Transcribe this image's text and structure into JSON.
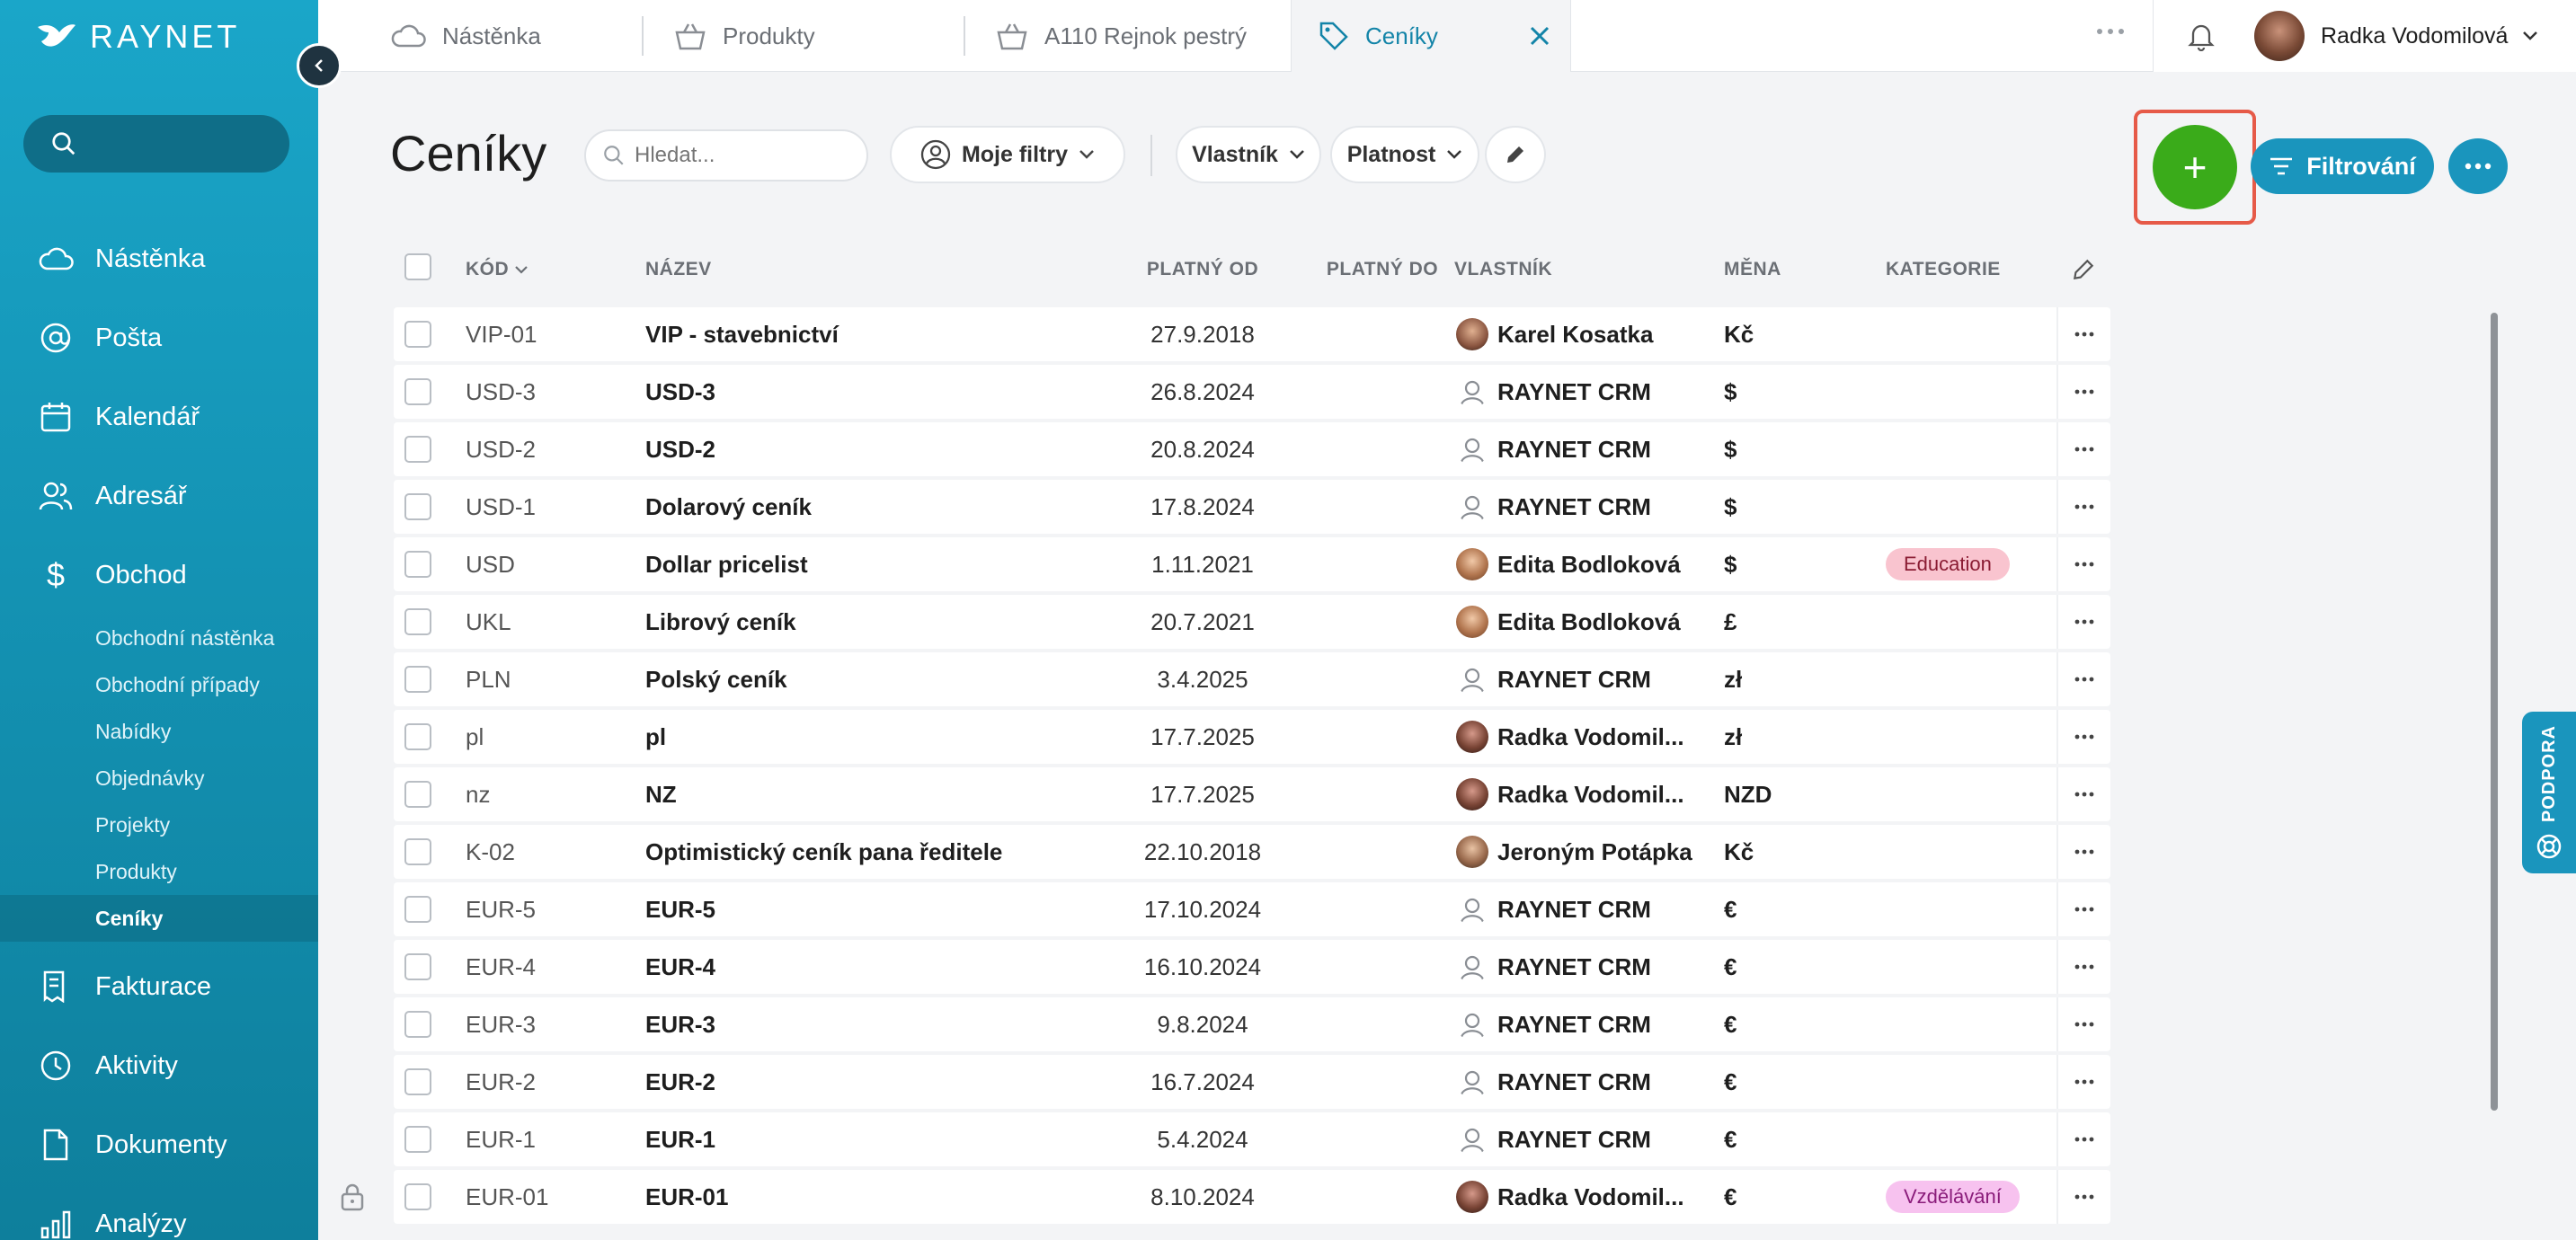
{
  "app": {
    "logo_text": "RAYNET"
  },
  "colors": {
    "sidebar": "#1493b4",
    "accent": "#1a95bd",
    "add": "#3aab1a",
    "highlight": "#e65a48"
  },
  "sidebar": {
    "search_placeholder": "",
    "items": [
      {
        "label": "Nástěnka",
        "icon": "cloud-icon"
      },
      {
        "label": "Pošta",
        "icon": "at-icon"
      },
      {
        "label": "Kalendář",
        "icon": "calendar-icon"
      },
      {
        "label": "Adresář",
        "icon": "people-icon"
      },
      {
        "label": "Obchod",
        "icon": "dollar-icon"
      }
    ],
    "subitems": [
      "Obchodní nástěnka",
      "Obchodní případy",
      "Nabídky",
      "Objednávky",
      "Projekty",
      "Produkty",
      "Ceníky"
    ],
    "items2": [
      {
        "label": "Fakturace",
        "icon": "invoice-icon"
      },
      {
        "label": "Aktivity",
        "icon": "clock-icon"
      },
      {
        "label": "Dokumenty",
        "icon": "document-icon"
      },
      {
        "label": "Analýzy",
        "icon": "chart-icon"
      }
    ]
  },
  "tabs": [
    {
      "label": "Nástěnka",
      "icon": "cloud-icon"
    },
    {
      "label": "Produkty",
      "icon": "basket-icon"
    },
    {
      "label": "A110 Rejnok pestrý",
      "icon": "basket-icon"
    },
    {
      "label": "Ceníky",
      "icon": "tag-icon"
    }
  ],
  "user": {
    "name": "Radka Vodomilová"
  },
  "toolbar": {
    "title": "Ceníky",
    "search_placeholder": "Hledat...",
    "my_filters": "Moje filtry",
    "owner_filter": "Vlastník",
    "validity_filter": "Platnost",
    "add_label": "+",
    "filter_label": "Filtrování"
  },
  "table": {
    "headers": {
      "code": "KÓD",
      "name": "NÁZEV",
      "from": "PLATNÝ OD",
      "to": "PLATNÝ DO",
      "owner": "VLASTNÍK",
      "currency": "MĚNA",
      "category": "KATEGORIE"
    },
    "rows": [
      {
        "code": "VIP-01",
        "name": "VIP - stavebnictví",
        "from": "27.9.2018",
        "owner": "Karel Kosatka",
        "owner_type": "m",
        "currency": "Kč",
        "category": ""
      },
      {
        "code": "USD-3",
        "name": "USD-3",
        "from": "26.8.2024",
        "owner": "RAYNET CRM",
        "owner_type": "sys",
        "currency": "$",
        "category": ""
      },
      {
        "code": "USD-2",
        "name": "USD-2",
        "from": "20.8.2024",
        "owner": "RAYNET CRM",
        "owner_type": "sys",
        "currency": "$",
        "category": ""
      },
      {
        "code": "USD-1",
        "name": "Dolarový ceník",
        "from": "17.8.2024",
        "owner": "RAYNET CRM",
        "owner_type": "sys",
        "currency": "$",
        "category": ""
      },
      {
        "code": "USD",
        "name": "Dollar pricelist",
        "from": "1.11.2021",
        "owner": "Edita Bodloková",
        "owner_type": "f",
        "currency": "$",
        "category": "Education",
        "category_bg": "#f9c4cf",
        "category_fg": "#8a1c33"
      },
      {
        "code": "UKL",
        "name": "Librový ceník",
        "from": "20.7.2021",
        "owner": "Edita Bodloková",
        "owner_type": "f",
        "currency": "£",
        "category": ""
      },
      {
        "code": "PLN",
        "name": "Polský ceník",
        "from": "3.4.2025",
        "owner": "RAYNET CRM",
        "owner_type": "sys",
        "currency": "zł",
        "category": ""
      },
      {
        "code": "pl",
        "name": "pl",
        "from": "17.7.2025",
        "owner": "Radka Vodomil...",
        "owner_type": "r",
        "currency": "zł",
        "category": ""
      },
      {
        "code": "nz",
        "name": "NZ",
        "from": "17.7.2025",
        "owner": "Radka Vodomil...",
        "owner_type": "r",
        "currency": "NZD",
        "category": ""
      },
      {
        "code": "K-02",
        "name": "Optimistický ceník pana ředitele",
        "from": "22.10.2018",
        "owner": "Jeroným Potápka",
        "owner_type": "j",
        "currency": "Kč",
        "category": ""
      },
      {
        "code": "EUR-5",
        "name": "EUR-5",
        "from": "17.10.2024",
        "owner": "RAYNET CRM",
        "owner_type": "sys",
        "currency": "€",
        "category": ""
      },
      {
        "code": "EUR-4",
        "name": "EUR-4",
        "from": "16.10.2024",
        "owner": "RAYNET CRM",
        "owner_type": "sys",
        "currency": "€",
        "category": ""
      },
      {
        "code": "EUR-3",
        "name": "EUR-3",
        "from": "9.8.2024",
        "owner": "RAYNET CRM",
        "owner_type": "sys",
        "currency": "€",
        "category": ""
      },
      {
        "code": "EUR-2",
        "name": "EUR-2",
        "from": "16.7.2024",
        "owner": "RAYNET CRM",
        "owner_type": "sys",
        "currency": "€",
        "category": ""
      },
      {
        "code": "EUR-1",
        "name": "EUR-1",
        "from": "5.4.2024",
        "owner": "RAYNET CRM",
        "owner_type": "sys",
        "currency": "€",
        "category": ""
      },
      {
        "code": "EUR-01",
        "name": "EUR-01",
        "from": "8.10.2024",
        "owner": "Radka Vodomil...",
        "owner_type": "r",
        "currency": "€",
        "category": "Vzdělávání",
        "category_bg": "#f7c2ef",
        "category_fg": "#8a1c7a"
      }
    ]
  },
  "support": {
    "label": "PODPORA"
  }
}
